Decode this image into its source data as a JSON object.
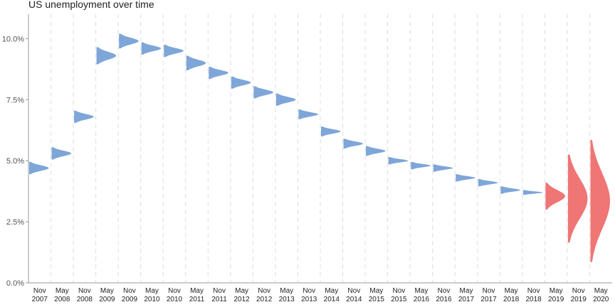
{
  "chart_data": {
    "type": "area",
    "title": "US unemployment over time",
    "xlabel": "",
    "ylabel": "",
    "ylim": [
      0,
      11
    ],
    "y_ticks": [
      "0.0%",
      "2.5%",
      "5.0%",
      "7.5%",
      "10.0%"
    ],
    "y_tick_values": [
      0,
      2.5,
      5,
      7.5,
      10
    ],
    "grid": "vertical dashed",
    "categories": [
      [
        "Nov",
        "2007"
      ],
      [
        "May",
        "2008"
      ],
      [
        "Nov",
        "2008"
      ],
      [
        "May",
        "2009"
      ],
      [
        "Nov",
        "2009"
      ],
      [
        "May",
        "2010"
      ],
      [
        "Nov",
        "2010"
      ],
      [
        "May",
        "2011"
      ],
      [
        "Nov",
        "2011"
      ],
      [
        "May",
        "2012"
      ],
      [
        "Nov",
        "2012"
      ],
      [
        "May",
        "2013"
      ],
      [
        "Nov",
        "2013"
      ],
      [
        "May",
        "2014"
      ],
      [
        "Nov",
        "2014"
      ],
      [
        "May",
        "2015"
      ],
      [
        "Nov",
        "2015"
      ],
      [
        "May",
        "2016"
      ],
      [
        "Nov",
        "2016"
      ],
      [
        "May",
        "2017"
      ],
      [
        "Nov",
        "2017"
      ],
      [
        "May",
        "2018"
      ],
      [
        "Nov",
        "2018"
      ],
      [
        "May",
        "2019"
      ],
      [
        "Nov",
        "2019"
      ],
      [
        "May",
        "2020"
      ]
    ],
    "series": [
      {
        "values": [
          4.7,
          5.3,
          6.8,
          9.3,
          9.9,
          9.6,
          9.5,
          9.0,
          8.6,
          8.2,
          7.8,
          7.5,
          6.9,
          6.2,
          5.7,
          5.4,
          5.0,
          4.8,
          4.7,
          4.3,
          4.1,
          3.8,
          3.7,
          3.55,
          3.45,
          3.35
        ],
        "spread": [
          0.25,
          0.25,
          0.25,
          0.35,
          0.3,
          0.25,
          0.25,
          0.3,
          0.25,
          0.25,
          0.25,
          0.25,
          0.2,
          0.2,
          0.2,
          0.2,
          0.15,
          0.15,
          0.15,
          0.15,
          0.15,
          0.15,
          0.1,
          0.55,
          1.8,
          2.5
        ],
        "colors": [
          "#7ea6d8",
          "#7ea6d8",
          "#7ea6d8",
          "#7ea6d8",
          "#7ea6d8",
          "#7ea6d8",
          "#7ea6d8",
          "#7ea6d8",
          "#7ea6d8",
          "#7ea6d8",
          "#7ea6d8",
          "#7ea6d8",
          "#7ea6d8",
          "#7ea6d8",
          "#7ea6d8",
          "#7ea6d8",
          "#7ea6d8",
          "#7ea6d8",
          "#7ea6d8",
          "#7ea6d8",
          "#7ea6d8",
          "#7ea6d8",
          "#7ea6d8",
          "#f07575",
          "#f07575",
          "#f07575"
        ]
      }
    ]
  }
}
